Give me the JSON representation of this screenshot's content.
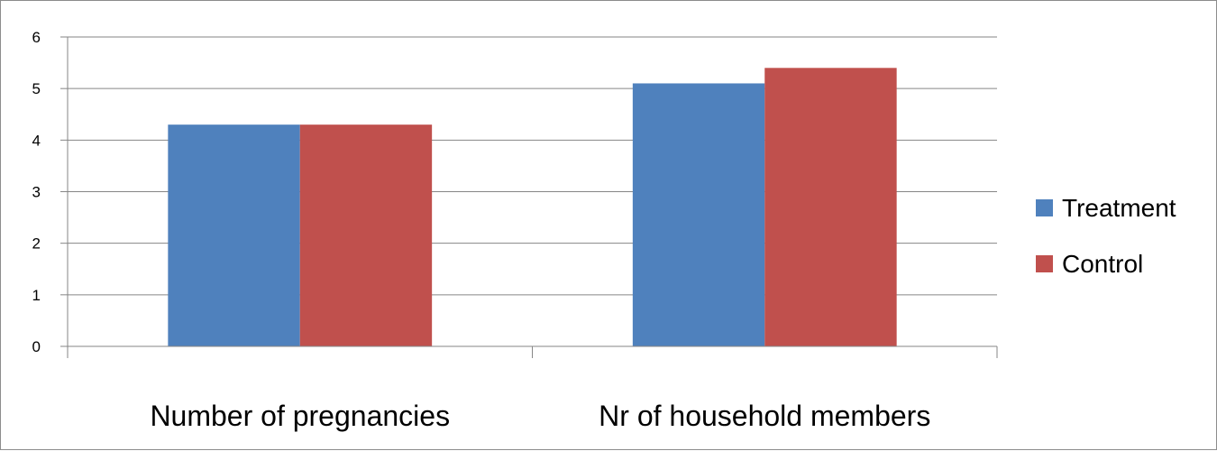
{
  "chart_data": {
    "type": "bar",
    "categories": [
      "Number of pregnancies",
      "Nr of household members"
    ],
    "series": [
      {
        "name": "Treatment",
        "values": [
          4.3,
          5.1
        ],
        "color": "#4f81bd"
      },
      {
        "name": "Control",
        "values": [
          4.3,
          5.4
        ],
        "color": "#c0504d"
      }
    ],
    "ylim": [
      0,
      6
    ],
    "yticks": [
      0,
      1,
      2,
      3,
      4,
      5,
      6
    ],
    "grid": true,
    "legend": "right",
    "title": "",
    "xlabel": "",
    "ylabel": ""
  }
}
